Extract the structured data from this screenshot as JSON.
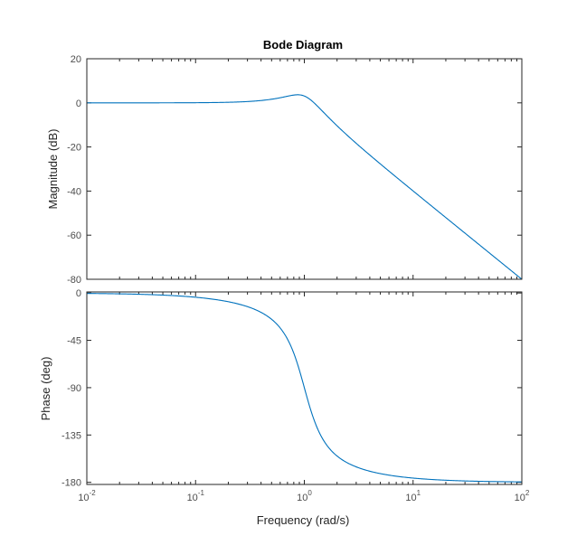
{
  "chart_data": {
    "type": "line",
    "title": "Bode Diagram",
    "xlabel": "Frequency  (rad/s)",
    "xscale": "log",
    "xlim": [
      0.01,
      100
    ],
    "x_ticks": [
      {
        "base": "10",
        "exp": "-2"
      },
      {
        "base": "10",
        "exp": "-1"
      },
      {
        "base": "10",
        "exp": "0"
      },
      {
        "base": "10",
        "exp": "1"
      },
      {
        "base": "10",
        "exp": "2"
      }
    ],
    "line_color": "#0072BD",
    "system": {
      "wn": 1.0,
      "zeta": 0.35,
      "order": 2
    },
    "panels": [
      {
        "name": "magnitude",
        "ylabel": "Magnitude (dB)",
        "ylim": [
          -80,
          20
        ],
        "y_ticks": [
          "20",
          "0",
          "-20",
          "-40",
          "-60",
          "-80"
        ],
        "series": [
          {
            "x": [
              0.01,
              0.1,
              0.3,
              0.5,
              0.7,
              0.85,
              1.0,
              1.5,
              2.0,
              5.0,
              10.0,
              50.0,
              100.0
            ],
            "values": [
              0.0,
              0.04,
              0.43,
              1.47,
              3.06,
              3.73,
              3.1,
              -2.79,
              -8.5,
              -27.6,
              -39.9,
              -67.9,
              -80.0
            ]
          }
        ]
      },
      {
        "name": "phase",
        "ylabel": "Phase (deg)",
        "ylim": [
          -182,
          1
        ],
        "y_ticks": [
          "0",
          "-45",
          "-90",
          "-135",
          "-180"
        ],
        "series": [
          {
            "x": [
              0.01,
              0.1,
              0.3,
              0.5,
              0.7,
              1.0,
              1.5,
              2.0,
              5.0,
              10.0,
              100.0
            ],
            "values": [
              -0.4,
              -4.0,
              -13.0,
              -25.0,
              -43.8,
              -90.0,
              -139.9,
              -155.0,
              -171.7,
              -175.9,
              -179.6
            ]
          }
        ]
      }
    ]
  }
}
